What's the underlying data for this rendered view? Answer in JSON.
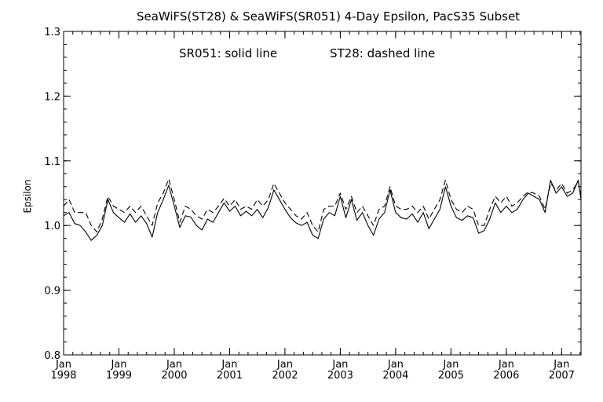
{
  "chart_data": {
    "type": "line",
    "title": "SeaWiFS(ST28) & SeaWiFS(SR051) 4-Day Epsilon, PacS35 Subset",
    "annotation_left": "SR051: solid line",
    "annotation_right": "ST28: dashed line",
    "xlabel": "",
    "ylabel": "Epsilon",
    "xlim": [
      1998.0,
      2007.35
    ],
    "ylim": [
      0.8,
      1.3
    ],
    "yticks": [
      "0.8",
      "0.9",
      "1.0",
      "1.1",
      "1.2",
      "1.3"
    ],
    "xticks": [
      {
        "month": "Jan",
        "year": "1998",
        "x": 1998.0
      },
      {
        "month": "Jan",
        "year": "1999",
        "x": 1999.0
      },
      {
        "month": "Jan",
        "year": "2000",
        "x": 2000.0
      },
      {
        "month": "Jan",
        "year": "2001",
        "x": 2001.0
      },
      {
        "month": "Jan",
        "year": "2002",
        "x": 2002.0
      },
      {
        "month": "Jan",
        "year": "2003",
        "x": 2003.0
      },
      {
        "month": "Jan",
        "year": "2004",
        "x": 2004.0
      },
      {
        "month": "Jan",
        "year": "2005",
        "x": 2005.0
      },
      {
        "month": "Jan",
        "year": "2006",
        "x": 2006.0
      },
      {
        "month": "Jan",
        "year": "2007",
        "x": 2007.0
      }
    ],
    "series": [
      {
        "name": "SR051",
        "style": "solid",
        "x": [
          1998.0,
          1998.1,
          1998.2,
          1998.3,
          1998.4,
          1998.5,
          1998.6,
          1998.7,
          1998.8,
          1998.9,
          1999.0,
          1999.1,
          1999.2,
          1999.3,
          1999.4,
          1999.5,
          1999.6,
          1999.7,
          1999.8,
          1999.9,
          2000.0,
          2000.1,
          2000.2,
          2000.3,
          2000.4,
          2000.5,
          2000.6,
          2000.7,
          2000.8,
          2000.9,
          2001.0,
          2001.1,
          2001.2,
          2001.3,
          2001.4,
          2001.5,
          2001.6,
          2001.7,
          2001.8,
          2001.9,
          2002.0,
          2002.1,
          2002.2,
          2002.3,
          2002.4,
          2002.5,
          2002.6,
          2002.7,
          2002.8,
          2002.9,
          2003.0,
          2003.1,
          2003.2,
          2003.3,
          2003.4,
          2003.5,
          2003.6,
          2003.7,
          2003.8,
          2003.9,
          2004.0,
          2004.1,
          2004.2,
          2004.3,
          2004.4,
          2004.5,
          2004.6,
          2004.7,
          2004.8,
          2004.9,
          2005.0,
          2005.1,
          2005.2,
          2005.3,
          2005.4,
          2005.5,
          2005.6,
          2005.7,
          2005.8,
          2005.9,
          2006.0,
          2006.1,
          2006.2,
          2006.3,
          2006.4,
          2006.5,
          2006.6,
          2006.7,
          2006.8,
          2006.9,
          2007.0,
          2007.1,
          2007.2,
          2007.3,
          2007.35
        ],
        "y": [
          1.015,
          1.02,
          1.003,
          1.0,
          0.99,
          0.977,
          0.985,
          1.0,
          1.04,
          1.02,
          1.012,
          1.005,
          1.018,
          1.005,
          1.015,
          1.003,
          0.982,
          1.02,
          1.04,
          1.062,
          1.03,
          0.997,
          1.015,
          1.013,
          1.0,
          0.993,
          1.01,
          1.005,
          1.02,
          1.035,
          1.022,
          1.03,
          1.015,
          1.022,
          1.015,
          1.025,
          1.012,
          1.028,
          1.055,
          1.04,
          1.025,
          1.012,
          1.004,
          1.0,
          1.005,
          0.985,
          0.98,
          1.01,
          1.02,
          1.015,
          1.045,
          1.012,
          1.04,
          1.008,
          1.02,
          1.0,
          0.985,
          1.01,
          1.02,
          1.055,
          1.02,
          1.012,
          1.01,
          1.018,
          1.005,
          1.02,
          0.995,
          1.01,
          1.025,
          1.06,
          1.03,
          1.012,
          1.008,
          1.015,
          1.012,
          0.988,
          0.992,
          1.01,
          1.035,
          1.02,
          1.03,
          1.02,
          1.025,
          1.04,
          1.05,
          1.045,
          1.04,
          1.02,
          1.07,
          1.05,
          1.06,
          1.045,
          1.05,
          1.07,
          1.04
        ]
      },
      {
        "name": "ST28",
        "style": "dashed",
        "x": [
          1998.0,
          1998.1,
          1998.2,
          1998.3,
          1998.4,
          1998.5,
          1998.6,
          1998.7,
          1998.8,
          1998.9,
          1999.0,
          1999.1,
          1999.2,
          1999.3,
          1999.4,
          1999.5,
          1999.6,
          1999.7,
          1999.8,
          1999.9,
          2000.0,
          2000.1,
          2000.2,
          2000.3,
          2000.4,
          2000.5,
          2000.6,
          2000.7,
          2000.8,
          2000.9,
          2001.0,
          2001.1,
          2001.2,
          2001.3,
          2001.4,
          2001.5,
          2001.6,
          2001.7,
          2001.8,
          2001.9,
          2002.0,
          2002.1,
          2002.2,
          2002.3,
          2002.4,
          2002.5,
          2002.6,
          2002.7,
          2002.8,
          2002.9,
          2003.0,
          2003.1,
          2003.2,
          2003.3,
          2003.4,
          2003.5,
          2003.6,
          2003.7,
          2003.8,
          2003.9,
          2004.0,
          2004.1,
          2004.2,
          2004.3,
          2004.4,
          2004.5,
          2004.6,
          2004.7,
          2004.8,
          2004.9,
          2005.0,
          2005.1,
          2005.2,
          2005.3,
          2005.4,
          2005.5,
          2005.6,
          2005.7,
          2005.8,
          2005.9,
          2006.0,
          2006.1,
          2006.2,
          2006.3,
          2006.4,
          2006.5,
          2006.6,
          2006.7,
          2006.8,
          2006.9,
          2007.0,
          2007.1,
          2007.2,
          2007.3,
          2007.35
        ],
        "y": [
          1.03,
          1.04,
          1.02,
          1.02,
          1.02,
          1.0,
          0.99,
          1.01,
          1.045,
          1.03,
          1.025,
          1.02,
          1.03,
          1.02,
          1.03,
          1.015,
          1.0,
          1.035,
          1.05,
          1.072,
          1.04,
          1.005,
          1.03,
          1.025,
          1.015,
          1.01,
          1.025,
          1.02,
          1.03,
          1.042,
          1.03,
          1.04,
          1.025,
          1.03,
          1.025,
          1.04,
          1.03,
          1.04,
          1.065,
          1.05,
          1.035,
          1.025,
          1.015,
          1.01,
          1.02,
          1.0,
          0.99,
          1.025,
          1.03,
          1.03,
          1.05,
          1.025,
          1.045,
          1.02,
          1.03,
          1.015,
          1.0,
          1.025,
          1.03,
          1.06,
          1.03,
          1.025,
          1.025,
          1.03,
          1.02,
          1.03,
          1.01,
          1.025,
          1.04,
          1.07,
          1.04,
          1.025,
          1.02,
          1.03,
          1.025,
          1.0,
          1.0,
          1.025,
          1.045,
          1.035,
          1.045,
          1.03,
          1.035,
          1.045,
          1.052,
          1.05,
          1.045,
          1.025,
          1.065,
          1.055,
          1.065,
          1.05,
          1.055,
          1.068,
          1.045
        ]
      }
    ]
  }
}
